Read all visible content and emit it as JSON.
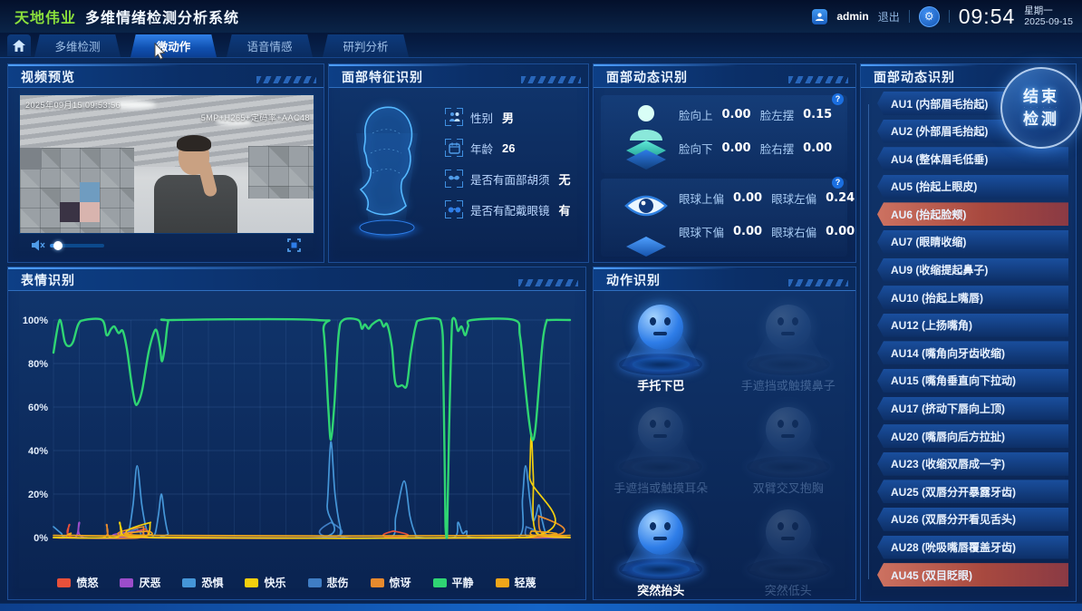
{
  "header": {
    "brand": "天地伟业",
    "title": "多维情绪检测分析系统",
    "user": "admin",
    "logout": "退出",
    "time": "09:54",
    "weekday": "星期一",
    "date": "2025-09-15"
  },
  "nav": {
    "tabs": [
      {
        "label": "多维检测",
        "active": false
      },
      {
        "label": "微动作",
        "active": true
      },
      {
        "label": "语音情感",
        "active": false
      },
      {
        "label": "研判分析",
        "active": false
      }
    ]
  },
  "video": {
    "title": "视频预览",
    "timestamp": "2025年09月15 09:53:56",
    "stream_info": "5MP+H265+定码率+AAC48",
    "controls": {
      "mute_icon": "muted-speaker-icon",
      "fullscreen_icon": "fullscreen-icon",
      "volume_percent": 15
    }
  },
  "face_features": {
    "title": "面部特征识别",
    "rows": [
      {
        "icon": "gender-icon",
        "label": "性别",
        "value": "男"
      },
      {
        "icon": "age-icon",
        "label": "年龄",
        "value": "26"
      },
      {
        "icon": "beard-icon",
        "label": "是否有面部胡须",
        "value": "无"
      },
      {
        "icon": "glasses-icon",
        "label": "是否有配戴眼镜",
        "value": "有"
      }
    ]
  },
  "face_dynamics": {
    "title": "面部动态识别",
    "head": {
      "icon": "person-icon",
      "metrics": [
        {
          "label": "脸向上",
          "value": "0.00"
        },
        {
          "label": "脸左摆",
          "value": "0.15"
        },
        {
          "label": "脸向下",
          "value": "0.00"
        },
        {
          "label": "脸右摆",
          "value": "0.00"
        }
      ]
    },
    "eye": {
      "icon": "eye-icon",
      "metrics": [
        {
          "label": "眼球上偏",
          "value": "0.00"
        },
        {
          "label": "眼球左偏",
          "value": "0.24"
        },
        {
          "label": "眼球下偏",
          "value": "0.00"
        },
        {
          "label": "眼球右偏",
          "value": "0.00"
        }
      ]
    }
  },
  "au_panel": {
    "title": "面部动态识别",
    "end_button": {
      "line1": "结束",
      "line2": "检测"
    },
    "items": [
      {
        "label": "AU1 (内部眉毛抬起)",
        "active": false
      },
      {
        "label": "AU2 (外部眉毛抬起)",
        "active": false
      },
      {
        "label": "AU4 (整体眉毛低垂)",
        "active": false
      },
      {
        "label": "AU5 (抬起上眼皮)",
        "active": false
      },
      {
        "label": "AU6 (抬起脸颊)",
        "active": true
      },
      {
        "label": "AU7 (眼睛收缩)",
        "active": false
      },
      {
        "label": "AU9 (收缩提起鼻子)",
        "active": false
      },
      {
        "label": "AU10 (抬起上嘴唇)",
        "active": false
      },
      {
        "label": "AU12 (上扬嘴角)",
        "active": false
      },
      {
        "label": "AU14 (嘴角向牙齿收缩)",
        "active": false
      },
      {
        "label": "AU15 (嘴角垂直向下拉动)",
        "active": false
      },
      {
        "label": "AU17 (挤动下唇向上顶)",
        "active": false
      },
      {
        "label": "AU20 (嘴唇向后方拉扯)",
        "active": false
      },
      {
        "label": "AU23 (收缩双唇成一字)",
        "active": false
      },
      {
        "label": "AU25 (双唇分开暴露牙齿)",
        "active": false
      },
      {
        "label": "AU26 (双唇分开看见舌头)",
        "active": false
      },
      {
        "label": "AU28 (吮吸嘴唇覆盖牙齿)",
        "active": false
      },
      {
        "label": "AU45 (双目眨眼)",
        "active": true
      }
    ]
  },
  "expression": {
    "title": "表情识别"
  },
  "actions": {
    "title": "动作识别",
    "items": [
      {
        "icon": "hand-on-chin-icon",
        "label": "手托下巴",
        "active": true
      },
      {
        "icon": "hand-touch-nose-icon",
        "label": "手遮挡或触摸鼻子",
        "active": false
      },
      {
        "icon": "hand-touch-ear-icon",
        "label": "手遮挡或触摸耳朵",
        "active": false
      },
      {
        "icon": "arms-crossed-icon",
        "label": "双臂交叉抱胸",
        "active": false
      },
      {
        "icon": "sudden-head-raise-icon",
        "label": "突然抬头",
        "active": true
      },
      {
        "icon": "sudden-head-lower-icon",
        "label": "突然低头",
        "active": false
      }
    ]
  },
  "colors": {
    "accent": "#35a6ff",
    "active_red": "#d5453a",
    "brand_green": "#8be03c"
  },
  "chart_data": {
    "type": "line",
    "title": "表情识别",
    "xlabel": "",
    "ylabel": "",
    "ylim": [
      0,
      100
    ],
    "yticks": [
      "0%",
      "20%",
      "40%",
      "60%",
      "80%",
      "100%"
    ],
    "grid": true,
    "legend_position": "bottom",
    "series": [
      {
        "name": "悲伤",
        "color": "#3f7dc4",
        "points": [
          [
            0,
            0
          ],
          [
            15.6,
            0
          ],
          [
            16.2,
            4
          ],
          [
            16.9,
            0
          ],
          [
            53,
            0
          ],
          [
            53.7,
            7
          ],
          [
            54.4,
            0
          ],
          [
            91,
            0
          ],
          [
            91.5,
            5
          ],
          [
            92.1,
            0
          ],
          [
            100,
            0
          ]
        ]
      },
      {
        "name": "恐惧",
        "color": "#4596d8",
        "points": [
          [
            0,
            5
          ],
          [
            1.5,
            2
          ],
          [
            3,
            0
          ],
          [
            13.5,
            0
          ],
          [
            14.5,
            2
          ],
          [
            15.4,
            15
          ],
          [
            16.2,
            33
          ],
          [
            17.1,
            15
          ],
          [
            18,
            4
          ],
          [
            19,
            1
          ],
          [
            19.7,
            2
          ],
          [
            20.3,
            10
          ],
          [
            20.9,
            20
          ],
          [
            21.5,
            10
          ],
          [
            22.2,
            2
          ],
          [
            23.2,
            0
          ],
          [
            52,
            0
          ],
          [
            53,
            15
          ],
          [
            53.7,
            44
          ],
          [
            54.5,
            20
          ],
          [
            55.5,
            5
          ],
          [
            56.5,
            0
          ],
          [
            65.2,
            0
          ],
          [
            66.3,
            10
          ],
          [
            67.9,
            26
          ],
          [
            69,
            10
          ],
          [
            70,
            2
          ],
          [
            71,
            0
          ],
          [
            77.5,
            0
          ],
          [
            78.3,
            7
          ],
          [
            79.2,
            2
          ],
          [
            80,
            3
          ],
          [
            81,
            0
          ],
          [
            90,
            0
          ],
          [
            90.8,
            18
          ],
          [
            91.4,
            33
          ],
          [
            92.2,
            18
          ],
          [
            92.8,
            8
          ],
          [
            93.4,
            10
          ],
          [
            94,
            15
          ],
          [
            94.6,
            8
          ],
          [
            95.3,
            2
          ],
          [
            96.2,
            0
          ],
          [
            100,
            0
          ]
        ]
      },
      {
        "name": "愤怒",
        "color": "#e8503a",
        "points": [
          [
            0,
            0
          ],
          [
            2.4,
            0
          ],
          [
            3.1,
            6
          ],
          [
            3.9,
            0
          ],
          [
            17.2,
            0
          ],
          [
            17.8,
            4
          ],
          [
            18.5,
            0
          ],
          [
            65,
            0
          ],
          [
            65.8,
            3
          ],
          [
            66.5,
            0
          ],
          [
            100,
            0
          ]
        ]
      },
      {
        "name": "厌恶",
        "color": "#9b4dca",
        "points": [
          [
            0,
            0
          ],
          [
            4.2,
            0
          ],
          [
            5,
            7
          ],
          [
            5.9,
            0
          ],
          [
            16.6,
            0
          ],
          [
            17.1,
            3
          ],
          [
            17.7,
            0
          ],
          [
            100,
            0
          ]
        ]
      },
      {
        "name": "惊讶",
        "color": "#e78a2e",
        "points": [
          [
            0,
            0
          ],
          [
            9.6,
            0
          ],
          [
            10.3,
            6
          ],
          [
            11.1,
            0
          ],
          [
            16.8,
            0
          ],
          [
            17.5,
            5
          ],
          [
            18.2,
            0
          ],
          [
            93.2,
            0
          ],
          [
            93.9,
            10
          ],
          [
            94.6,
            2
          ],
          [
            100,
            0
          ]
        ]
      },
      {
        "name": "快乐",
        "color": "#f3cf0e",
        "points": [
          [
            0,
            0
          ],
          [
            12.1,
            0
          ],
          [
            12.8,
            7
          ],
          [
            13.6,
            1
          ],
          [
            18.1,
            1
          ],
          [
            18.8,
            7
          ],
          [
            19.6,
            0
          ],
          [
            91.7,
            0
          ],
          [
            92.2,
            28
          ],
          [
            92.5,
            48
          ],
          [
            92.9,
            28
          ],
          [
            93.5,
            2
          ],
          [
            100,
            0
          ]
        ]
      },
      {
        "name": "轻蔑",
        "color": "#efa61a",
        "points": [
          [
            0,
            1
          ],
          [
            2.9,
            1
          ],
          [
            3.4,
            2
          ],
          [
            4,
            1
          ],
          [
            17.9,
            1
          ],
          [
            18.6,
            3
          ],
          [
            19.3,
            1
          ],
          [
            92,
            1
          ],
          [
            92.5,
            3
          ],
          [
            93,
            1
          ],
          [
            100,
            1
          ]
        ]
      },
      {
        "name": "平静",
        "color": "#2fd573",
        "points": [
          [
            0,
            85
          ],
          [
            1.2,
            100
          ],
          [
            2.2,
            90
          ],
          [
            3,
            88
          ],
          [
            3.8,
            90
          ],
          [
            4.8,
            98
          ],
          [
            6,
            100
          ],
          [
            9.4,
            100
          ],
          [
            10.3,
            93
          ],
          [
            11.2,
            96
          ],
          [
            11.8,
            97
          ],
          [
            12.6,
            94
          ],
          [
            13.4,
            95
          ],
          [
            14.2,
            87
          ],
          [
            15,
            73
          ],
          [
            15.8,
            62
          ],
          [
            16.4,
            62
          ],
          [
            17.2,
            68
          ],
          [
            18.4,
            85
          ],
          [
            19.4,
            94
          ],
          [
            20,
            95
          ],
          [
            20.6,
            88
          ],
          [
            21,
            81
          ],
          [
            21.6,
            88
          ],
          [
            22.2,
            99
          ],
          [
            23.2,
            100
          ],
          [
            51,
            100
          ],
          [
            52.3,
            95
          ],
          [
            53.2,
            60
          ],
          [
            53.7,
            45
          ],
          [
            54.4,
            62
          ],
          [
            55.2,
            93
          ],
          [
            56.1,
            100
          ],
          [
            59,
            100
          ],
          [
            59.7,
            96
          ],
          [
            60.3,
            98
          ],
          [
            61,
            96
          ],
          [
            61.7,
            98
          ],
          [
            63.2,
            100
          ],
          [
            63.9,
            97
          ],
          [
            64.6,
            98
          ],
          [
            65.5,
            88
          ],
          [
            66.2,
            71
          ],
          [
            67.5,
            70
          ],
          [
            68.4,
            70
          ],
          [
            69.2,
            85
          ],
          [
            70.1,
            97
          ],
          [
            71,
            100
          ],
          [
            74.9,
            100
          ],
          [
            75.5,
            70
          ],
          [
            75.9,
            5
          ],
          [
            76.2,
            0
          ],
          [
            76.6,
            50
          ],
          [
            77.2,
            100
          ],
          [
            77.8,
            100
          ],
          [
            78.3,
            95
          ],
          [
            79,
            97
          ],
          [
            79.7,
            93
          ],
          [
            80.3,
            97
          ],
          [
            81,
            100
          ],
          [
            89.2,
            100
          ],
          [
            90.3,
            93
          ],
          [
            91.1,
            75
          ],
          [
            92,
            55
          ],
          [
            92.7,
            45
          ],
          [
            93.3,
            50
          ],
          [
            94,
            70
          ],
          [
            94.7,
            90
          ],
          [
            95.4,
            99
          ],
          [
            96.1,
            100
          ],
          [
            100,
            100
          ]
        ]
      }
    ],
    "legend": [
      "愤怒",
      "厌恶",
      "恐惧",
      "快乐",
      "悲伤",
      "惊讶",
      "平静",
      "轻蔑"
    ],
    "legend_colors": [
      "#e8503a",
      "#9b4dca",
      "#4596d8",
      "#f3cf0e",
      "#3f7dc4",
      "#e78a2e",
      "#2fd573",
      "#efa61a"
    ]
  }
}
